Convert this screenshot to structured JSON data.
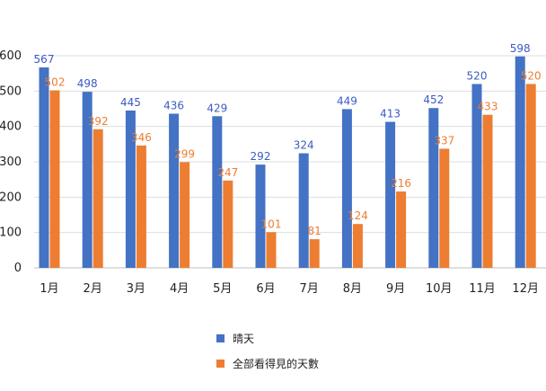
{
  "chart_data": {
    "type": "bar",
    "categories": [
      "1月",
      "2月",
      "3月",
      "4月",
      "5月",
      "6月",
      "7月",
      "8月",
      "9月",
      "10月",
      "11月",
      "12月"
    ],
    "series": [
      {
        "name": "晴天",
        "color": "#4472C4",
        "label_color": "#3B5BC4",
        "values": [
          567,
          498,
          445,
          436,
          429,
          292,
          324,
          449,
          413,
          452,
          520,
          598
        ]
      },
      {
        "name": "全部看得見的天數",
        "color": "#ED7D31",
        "label_color": "#ED7D31",
        "values": [
          502,
          392,
          346,
          299,
          247,
          101,
          81,
          124,
          216,
          337,
          433,
          520
        ]
      }
    ],
    "ylim": [
      0,
      600
    ],
    "yticks": [
      0,
      100,
      200,
      300,
      400,
      500,
      600
    ],
    "grid": true,
    "legend_position": "bottom"
  }
}
